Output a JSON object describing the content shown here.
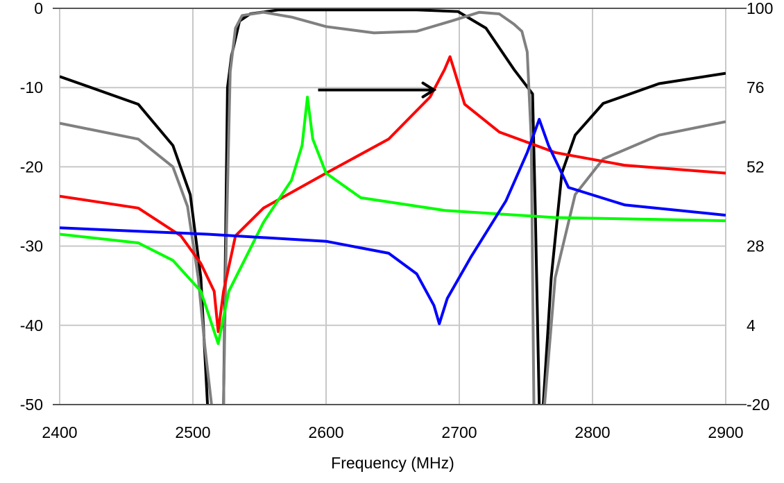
{
  "chart_data": {
    "type": "line",
    "title": "",
    "xlabel": "Frequency (MHz)",
    "ylabel": "",
    "xlim": [
      2400,
      2900
    ],
    "ylim": [
      -50,
      0
    ],
    "y2lim": [
      -20,
      100
    ],
    "grid": true,
    "x_ticks": [
      2400,
      2500,
      2600,
      2700,
      2800,
      2900
    ],
    "y_ticks": [
      0,
      -10,
      -20,
      -30,
      -40,
      -50
    ],
    "y2_ticks": [
      100,
      76,
      52,
      28,
      4,
      -20
    ],
    "series": [
      {
        "color": "#000000",
        "points": [
          [
            2400,
            -8.6
          ],
          [
            2459,
            -12.1
          ],
          [
            2485,
            -17.3
          ],
          [
            2498,
            -23.5
          ],
          [
            2506,
            -34
          ],
          [
            2511,
            -50
          ],
          [
            2514,
            -60
          ],
          [
            2521,
            -60
          ],
          [
            2523,
            -50
          ],
          [
            2526,
            -10
          ],
          [
            2529,
            -6
          ],
          [
            2535,
            -1.6
          ],
          [
            2543,
            -0.7
          ],
          [
            2564,
            -0.2
          ],
          [
            2668,
            -0.2
          ],
          [
            2699,
            -0.4
          ],
          [
            2720,
            -2.5
          ],
          [
            2741,
            -7.7
          ],
          [
            2751,
            -9.9
          ],
          [
            2755,
            -10.8
          ],
          [
            2757,
            -25
          ],
          [
            2760,
            -50
          ],
          [
            2762,
            -60
          ],
          [
            2763,
            -50
          ],
          [
            2769,
            -34
          ],
          [
            2777,
            -20.8
          ],
          [
            2787,
            -16
          ],
          [
            2808,
            -12
          ],
          [
            2850,
            -9.5
          ],
          [
            2900,
            -8.2
          ]
        ]
      },
      {
        "color": "#808080",
        "points": [
          [
            2400,
            -14.5
          ],
          [
            2459,
            -16.5
          ],
          [
            2485,
            -20
          ],
          [
            2496,
            -25
          ],
          [
            2504,
            -34
          ],
          [
            2509,
            -42.7
          ],
          [
            2514,
            -50
          ],
          [
            2518,
            -60
          ],
          [
            2522,
            -60
          ],
          [
            2525,
            -30
          ],
          [
            2528,
            -8
          ],
          [
            2532,
            -2.5
          ],
          [
            2537,
            -0.9
          ],
          [
            2553,
            -0.5
          ],
          [
            2574,
            -1.1
          ],
          [
            2600,
            -2.3
          ],
          [
            2636,
            -3.1
          ],
          [
            2668,
            -2.9
          ],
          [
            2694,
            -1.6
          ],
          [
            2715,
            -0.5
          ],
          [
            2730,
            -0.7
          ],
          [
            2741,
            -2
          ],
          [
            2747,
            -2.9
          ],
          [
            2751,
            -5.5
          ],
          [
            2754,
            -16.5
          ],
          [
            2756,
            -50
          ],
          [
            2758,
            -60
          ],
          [
            2762,
            -60
          ],
          [
            2764,
            -50
          ],
          [
            2772,
            -34
          ],
          [
            2787,
            -23.5
          ],
          [
            2808,
            -19
          ],
          [
            2850,
            -16
          ],
          [
            2900,
            -14.3
          ]
        ]
      },
      {
        "color": "#ff0000",
        "points": [
          [
            2400,
            -23.7
          ],
          [
            2459,
            -25.2
          ],
          [
            2491,
            -28.7
          ],
          [
            2506,
            -32.2
          ],
          [
            2516,
            -35.7
          ],
          [
            2519,
            -40.8
          ],
          [
            2523,
            -35.7
          ],
          [
            2532,
            -28.7
          ],
          [
            2553,
            -25.2
          ],
          [
            2600,
            -20.8
          ],
          [
            2647,
            -16.5
          ],
          [
            2678,
            -11.2
          ],
          [
            2689,
            -7.7
          ],
          [
            2693,
            -6.1
          ],
          [
            2696,
            -7.7
          ],
          [
            2704,
            -12.1
          ],
          [
            2730,
            -15.6
          ],
          [
            2772,
            -18.2
          ],
          [
            2824,
            -19.8
          ],
          [
            2900,
            -20.8
          ]
        ]
      },
      {
        "color": "#00ff00",
        "points": [
          [
            2400,
            -28.5
          ],
          [
            2459,
            -29.6
          ],
          [
            2485,
            -31.8
          ],
          [
            2506,
            -35.7
          ],
          [
            2519,
            -42.3
          ],
          [
            2527,
            -35.7
          ],
          [
            2553,
            -27
          ],
          [
            2574,
            -21.7
          ],
          [
            2582,
            -17.3
          ],
          [
            2586,
            -11.2
          ],
          [
            2590,
            -16.5
          ],
          [
            2600,
            -20.8
          ],
          [
            2626,
            -23.9
          ],
          [
            2689,
            -25.5
          ],
          [
            2772,
            -26.4
          ],
          [
            2900,
            -26.8
          ]
        ]
      },
      {
        "color": "#0000ff",
        "points": [
          [
            2400,
            -27.7
          ],
          [
            2511,
            -28.5
          ],
          [
            2600,
            -29.4
          ],
          [
            2647,
            -30.9
          ],
          [
            2668,
            -33.5
          ],
          [
            2681,
            -37.5
          ],
          [
            2685,
            -39.8
          ],
          [
            2691,
            -36.6
          ],
          [
            2709,
            -31.3
          ],
          [
            2735,
            -24.3
          ],
          [
            2751,
            -18.2
          ],
          [
            2760,
            -14
          ],
          [
            2767,
            -17.3
          ],
          [
            2782,
            -22.6
          ],
          [
            2824,
            -24.8
          ],
          [
            2900,
            -26.1
          ]
        ]
      }
    ],
    "annotations": [
      {
        "type": "arrow",
        "from": [
          2594,
          -10.3
        ],
        "to": [
          2681,
          -10.3
        ],
        "color": "#000000"
      }
    ]
  }
}
